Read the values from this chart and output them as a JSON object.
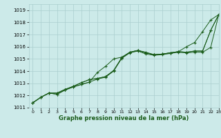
{
  "title": "Graphe pression niveau de la mer (hPa)",
  "bg_color": "#cceae9",
  "grid_color": "#aacece",
  "line_color": "#1a5c1a",
  "xlim": [
    -0.5,
    23
  ],
  "ylim": [
    1011,
    1019.5
  ],
  "xticks": [
    0,
    1,
    2,
    3,
    4,
    5,
    6,
    7,
    8,
    9,
    10,
    11,
    12,
    13,
    14,
    15,
    16,
    17,
    18,
    19,
    20,
    21,
    22,
    23
  ],
  "yticks": [
    1011,
    1012,
    1013,
    1014,
    1015,
    1016,
    1017,
    1018,
    1019
  ],
  "series": [
    [
      1011.4,
      1011.85,
      1012.2,
      1012.1,
      1012.45,
      1012.7,
      1012.9,
      1013.1,
      1013.9,
      1014.4,
      1015.0,
      1015.15,
      1015.55,
      1015.7,
      1015.55,
      1015.35,
      1015.4,
      1015.5,
      1015.6,
      1016.0,
      1016.35,
      1017.25,
      1018.2,
      1018.65
    ],
    [
      1011.4,
      1011.85,
      1012.2,
      1012.1,
      1012.45,
      1012.7,
      1012.9,
      1013.1,
      1013.35,
      1013.5,
      1014.0,
      1015.05,
      1015.5,
      1015.65,
      1015.4,
      1015.3,
      1015.35,
      1015.45,
      1015.55,
      1015.5,
      1015.55,
      1015.55,
      1015.95,
      1018.65
    ],
    [
      1011.4,
      1011.85,
      1012.2,
      1012.2,
      1012.5,
      1012.75,
      1013.05,
      1013.3,
      1013.4,
      1013.55,
      1014.05,
      1015.1,
      1015.55,
      1015.7,
      1015.5,
      1015.35,
      1015.4,
      1015.5,
      1015.6,
      1015.55,
      1015.65,
      1015.65,
      1017.35,
      1018.65
    ],
    [
      1011.4,
      1011.85,
      1012.2,
      1012.2,
      1012.5,
      1012.75,
      1013.05,
      1013.3,
      1013.4,
      1013.55,
      1014.05,
      1015.1,
      1015.55,
      1015.7,
      1015.5,
      1015.35,
      1015.4,
      1015.5,
      1015.6,
      1015.55,
      1015.65,
      1015.65,
      1017.35,
      1018.65
    ]
  ]
}
